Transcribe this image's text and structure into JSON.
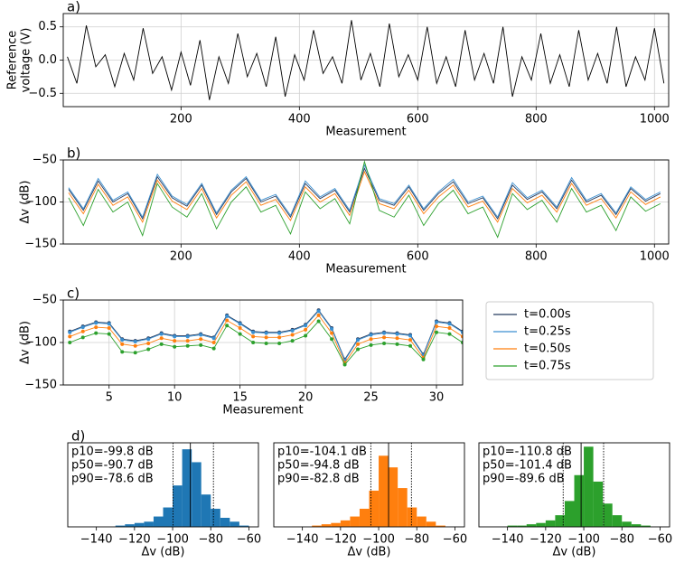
{
  "chart_data": [
    {
      "type": "line",
      "title": "a)",
      "xlabel": "Measurement",
      "ylabel": [
        "Reference",
        "voltage (V)"
      ],
      "xlim": [
        1,
        1024
      ],
      "ylim": [
        -0.7,
        0.7
      ],
      "xticks": [
        200,
        400,
        600,
        800,
        1000
      ],
      "yticks": [
        {
          "value": -0.5,
          "label": "−0.5"
        },
        {
          "value": 0,
          "label": "0.0"
        },
        0.5
      ],
      "grid": true,
      "x": [
        8,
        24,
        40,
        56,
        72,
        88,
        104,
        120,
        136,
        152,
        168,
        184,
        200,
        216,
        232,
        248,
        264,
        280,
        296,
        312,
        328,
        344,
        360,
        376,
        392,
        408,
        424,
        440,
        456,
        472,
        488,
        504,
        520,
        536,
        552,
        568,
        584,
        600,
        616,
        632,
        648,
        664,
        680,
        696,
        712,
        728,
        744,
        760,
        776,
        792,
        808,
        824,
        840,
        856,
        872,
        888,
        904,
        920,
        936,
        952,
        968,
        984,
        1000,
        1016
      ],
      "series": [
        {
          "color": "#000000",
          "values": [
            0.05,
            -0.35,
            0.52,
            -0.1,
            0.08,
            -0.4,
            0.1,
            -0.3,
            0.48,
            -0.2,
            0.05,
            -0.45,
            0.12,
            -0.38,
            0.3,
            -0.6,
            0.05,
            -0.35,
            0.4,
            -0.25,
            0.1,
            -0.4,
            0.35,
            -0.55,
            0.08,
            -0.3,
            0.45,
            -0.2,
            0.05,
            -0.35,
            0.6,
            -0.3,
            0.1,
            -0.4,
            0.55,
            -0.25,
            0.08,
            -0.3,
            0.5,
            -0.35,
            0.05,
            -0.4,
            0.45,
            -0.3,
            0.1,
            -0.35,
            0.5,
            -0.55,
            0.05,
            -0.3,
            0.4,
            -0.35,
            0.08,
            -0.4,
            0.45,
            -0.3,
            0.1,
            -0.35,
            0.5,
            -0.4,
            0.05,
            -0.3,
            0.48,
            -0.35
          ]
        }
      ]
    },
    {
      "type": "line",
      "title": "b)",
      "xlabel": "Measurement",
      "ylabel": [
        "Δv (dB)"
      ],
      "xlim": [
        1,
        1024
      ],
      "ylim": [
        -150,
        -50
      ],
      "xticks": [
        200,
        400,
        600,
        800,
        1000
      ],
      "yticks": [
        {
          "value": -150,
          "label": "−150"
        },
        {
          "value": -100,
          "label": "−100"
        },
        {
          "value": -50,
          "label": "−50"
        }
      ],
      "grid": true,
      "x": [
        10,
        35,
        60,
        85,
        110,
        135,
        160,
        185,
        210,
        235,
        260,
        285,
        310,
        335,
        360,
        385,
        410,
        435,
        460,
        485,
        510,
        535,
        560,
        585,
        610,
        635,
        660,
        685,
        710,
        735,
        760,
        785,
        810,
        835,
        860,
        885,
        910,
        935,
        960,
        985,
        1010
      ],
      "series": [
        {
          "color": "#253a5e",
          "values": [
            -85,
            -110,
            -75,
            -100,
            -90,
            -120,
            -70,
            -95,
            -105,
            -80,
            -115,
            -88,
            -72,
            -100,
            -93,
            -118,
            -78,
            -96,
            -86,
            -112,
            -60,
            -98,
            -104,
            -82,
            -110,
            -90,
            -76,
            -102,
            -95,
            -120,
            -80,
            -97,
            -88,
            -108,
            -74,
            -100,
            -92,
            -115,
            -84,
            -99,
            -90
          ]
        },
        {
          "color": "#3a8fd0",
          "values": [
            -83,
            -108,
            -72,
            -98,
            -88,
            -118,
            -67,
            -93,
            -103,
            -78,
            -113,
            -86,
            -70,
            -98,
            -91,
            -116,
            -75,
            -94,
            -84,
            -110,
            -56,
            -96,
            -102,
            -80,
            -108,
            -88,
            -73,
            -100,
            -93,
            -118,
            -77,
            -95,
            -86,
            -106,
            -71,
            -98,
            -90,
            -113,
            -82,
            -97,
            -88
          ]
        },
        {
          "color": "#ff7f0e",
          "values": [
            -89,
            -114,
            -79,
            -104,
            -94,
            -124,
            -74,
            -99,
            -109,
            -84,
            -119,
            -92,
            -76,
            -104,
            -97,
            -122,
            -82,
            -100,
            -90,
            -116,
            -64,
            -102,
            -108,
            -86,
            -114,
            -94,
            -80,
            -106,
            -99,
            -124,
            -84,
            -101,
            -92,
            -112,
            -78,
            -104,
            -96,
            -119,
            -88,
            -103,
            -94
          ]
        },
        {
          "color": "#2ca02c",
          "values": [
            -95,
            -128,
            -85,
            -112,
            -100,
            -140,
            -78,
            -106,
            -118,
            -90,
            -132,
            -100,
            -82,
            -112,
            -104,
            -138,
            -88,
            -108,
            -96,
            -126,
            -52,
            -110,
            -118,
            -92,
            -128,
            -102,
            -86,
            -114,
            -106,
            -142,
            -90,
            -109,
            -98,
            -124,
            -84,
            -112,
            -104,
            -134,
            -94,
            -111,
            -102
          ]
        }
      ]
    },
    {
      "type": "line",
      "title": "c)",
      "xlabel": "Measurement",
      "ylabel": [
        "Δv (dB)"
      ],
      "xlim": [
        1.5,
        32
      ],
      "ylim": [
        -150,
        -50
      ],
      "xticks": [
        5,
        10,
        15,
        20,
        25,
        30
      ],
      "yticks": [
        {
          "value": -150,
          "label": "−150"
        },
        {
          "value": -100,
          "label": "−100"
        },
        {
          "value": -50,
          "label": "−50"
        }
      ],
      "grid": true,
      "legend": "right",
      "markers": true,
      "x": [
        2,
        3,
        4,
        5,
        6,
        7,
        8,
        9,
        10,
        11,
        12,
        13,
        14,
        15,
        16,
        17,
        18,
        19,
        20,
        21,
        22,
        23,
        24,
        25,
        26,
        27,
        28,
        29,
        30,
        31,
        32
      ],
      "series": [
        {
          "name": "t=0.00s",
          "color": "#253a5e",
          "values": [
            -87,
            -81,
            -76,
            -77,
            -96,
            -98,
            -95,
            -89,
            -92,
            -92,
            -90,
            -94,
            -68,
            -77,
            -87,
            -88,
            -88,
            -85,
            -79,
            -62,
            -83,
            -120,
            -96,
            -90,
            -88,
            -89,
            -91,
            -114,
            -75,
            -77,
            -87
          ]
        },
        {
          "name": "t=0.25s",
          "color": "#3a8fd0",
          "values": [
            -88,
            -82,
            -77,
            -78,
            -97,
            -99,
            -96,
            -90,
            -93,
            -93,
            -91,
            -95,
            -69,
            -78,
            -88,
            -89,
            -89,
            -86,
            -80,
            -63,
            -84,
            -121,
            -97,
            -91,
            -89,
            -90,
            -92,
            -115,
            -76,
            -78,
            -88
          ]
        },
        {
          "name": "t=0.50s",
          "color": "#ff7f0e",
          "values": [
            -93,
            -87,
            -82,
            -83,
            -102,
            -104,
            -101,
            -95,
            -98,
            -98,
            -96,
            -100,
            -74,
            -83,
            -93,
            -94,
            -94,
            -91,
            -85,
            -68,
            -89,
            -124,
            -102,
            -96,
            -94,
            -95,
            -97,
            -118,
            -81,
            -83,
            -93
          ]
        },
        {
          "name": "t=0.75s",
          "color": "#2ca02c",
          "values": [
            -100,
            -94,
            -89,
            -90,
            -111,
            -112,
            -108,
            -102,
            -105,
            -104,
            -103,
            -107,
            -80,
            -90,
            -100,
            -101,
            -101,
            -98,
            -92,
            -75,
            -96,
            -126,
            -108,
            -103,
            -101,
            -102,
            -104,
            -120,
            -88,
            -90,
            -100
          ]
        }
      ]
    },
    {
      "type": "histogram",
      "title": "d)",
      "xlabel": "Δv (dB)",
      "color": "#1f77b4",
      "xlim": [
        -155,
        -55
      ],
      "ylim": [
        0,
        65
      ],
      "xticks": [
        {
          "value": -140,
          "label": "−140"
        },
        {
          "value": -120,
          "label": "−120"
        },
        {
          "value": -100,
          "label": "−100"
        },
        {
          "value": -80,
          "label": "−80"
        },
        {
          "value": -60,
          "label": "−60"
        }
      ],
      "bins": [
        -130,
        -125,
        -120,
        -115,
        -110,
        -105,
        -100,
        -95,
        -90,
        -85,
        -80,
        -75,
        -70,
        -65,
        -60
      ],
      "values": [
        1,
        2,
        3,
        4,
        8,
        15,
        32,
        60,
        50,
        25,
        14,
        7,
        4,
        1
      ],
      "percentiles": [
        {
          "value": -99.8,
          "label": "p10=-99.8 dB",
          "style": "dotted"
        },
        {
          "value": -90.7,
          "label": "p50=-90.7 dB",
          "style": "solid"
        },
        {
          "value": -78.6,
          "label": "p90=-78.6 dB",
          "style": "dotted"
        }
      ]
    },
    {
      "type": "histogram",
      "xlabel": "Δv (dB)",
      "color": "#ff7f0e",
      "xlim": [
        -155,
        -55
      ],
      "ylim": [
        0,
        65
      ],
      "xticks": [
        {
          "value": -140,
          "label": "−140"
        },
        {
          "value": -120,
          "label": "−120"
        },
        {
          "value": -100,
          "label": "−100"
        },
        {
          "value": -80,
          "label": "−80"
        },
        {
          "value": -60,
          "label": "−60"
        }
      ],
      "bins": [
        -135,
        -130,
        -125,
        -120,
        -115,
        -110,
        -105,
        -100,
        -95,
        -90,
        -85,
        -80,
        -75,
        -70,
        -65
      ],
      "values": [
        1,
        2,
        3,
        5,
        8,
        14,
        28,
        55,
        46,
        30,
        15,
        8,
        4,
        1
      ],
      "percentiles": [
        {
          "value": -104.1,
          "label": "p10=-104.1 dB",
          "style": "dotted"
        },
        {
          "value": -94.8,
          "label": "p50=-94.8 dB",
          "style": "solid"
        },
        {
          "value": -82.8,
          "label": "p90=-82.8 dB",
          "style": "dotted"
        }
      ]
    },
    {
      "type": "histogram",
      "xlabel": "Δv (dB)",
      "color": "#2ca02c",
      "xlim": [
        -155,
        -55
      ],
      "ylim": [
        0,
        65
      ],
      "xticks": [
        {
          "value": -140,
          "label": "−140"
        },
        {
          "value": -120,
          "label": "−120"
        },
        {
          "value": -100,
          "label": "−100"
        },
        {
          "value": -80,
          "label": "−80"
        },
        {
          "value": -60,
          "label": "−60"
        }
      ],
      "bins": [
        -140,
        -135,
        -130,
        -125,
        -120,
        -115,
        -110,
        -105,
        -100,
        -95,
        -90,
        -85,
        -80,
        -75,
        -70,
        -65
      ],
      "values": [
        1,
        1,
        2,
        3,
        5,
        9,
        20,
        40,
        62,
        35,
        18,
        9,
        4,
        2,
        1
      ],
      "percentiles": [
        {
          "value": -110.8,
          "label": "p10=-110.8 dB",
          "style": "dotted"
        },
        {
          "value": -101.4,
          "label": "p50=-101.4 dB",
          "style": "solid"
        },
        {
          "value": -89.6,
          "label": "p90=-89.6 dB",
          "style": "dotted"
        }
      ]
    }
  ]
}
